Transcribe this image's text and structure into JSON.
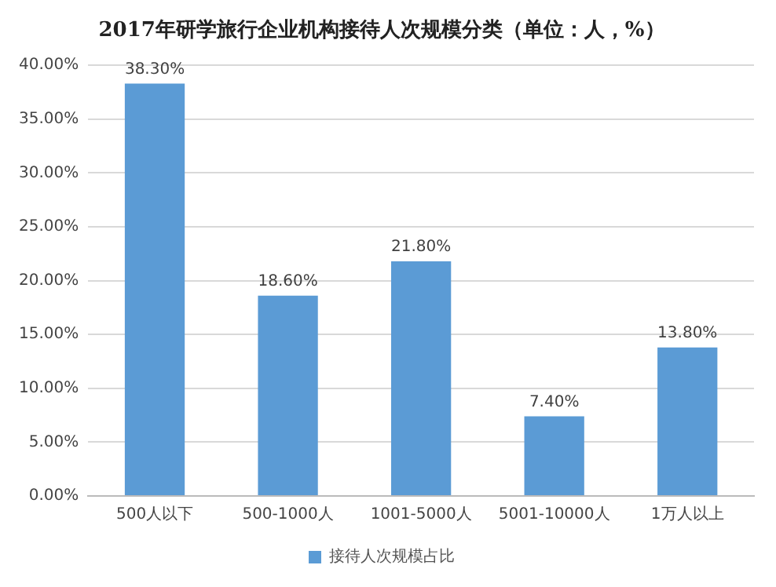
{
  "chart_data": {
    "type": "bar",
    "title": "2017年研学旅行企业机构接待人次规模分类（单位：人，%）",
    "categories": [
      "500人以下",
      "500-1000人",
      "1001-5000人",
      "5001-10000人",
      "1万人以上"
    ],
    "series": [
      {
        "name": "接待人次规模占比",
        "color": "#5b9bd5",
        "values": [
          38.3,
          18.6,
          21.8,
          7.4,
          13.8
        ],
        "value_labels": [
          "38.30%",
          "18.60%",
          "21.80%",
          "7.40%",
          "13.80%"
        ]
      }
    ],
    "ylim": [
      0,
      40
    ],
    "yticks": [
      {
        "value": 0,
        "label": "0.00%"
      },
      {
        "value": 5,
        "label": "5.00%"
      },
      {
        "value": 10,
        "label": "10.00%"
      },
      {
        "value": 15,
        "label": "15.00%"
      },
      {
        "value": 20,
        "label": "20.00%"
      },
      {
        "value": 25,
        "label": "25.00%"
      },
      {
        "value": 30,
        "label": "30.00%"
      },
      {
        "value": 35,
        "label": "35.00%"
      },
      {
        "value": 40,
        "label": "40.00%"
      }
    ],
    "grid": "y",
    "legend": "bottom"
  }
}
